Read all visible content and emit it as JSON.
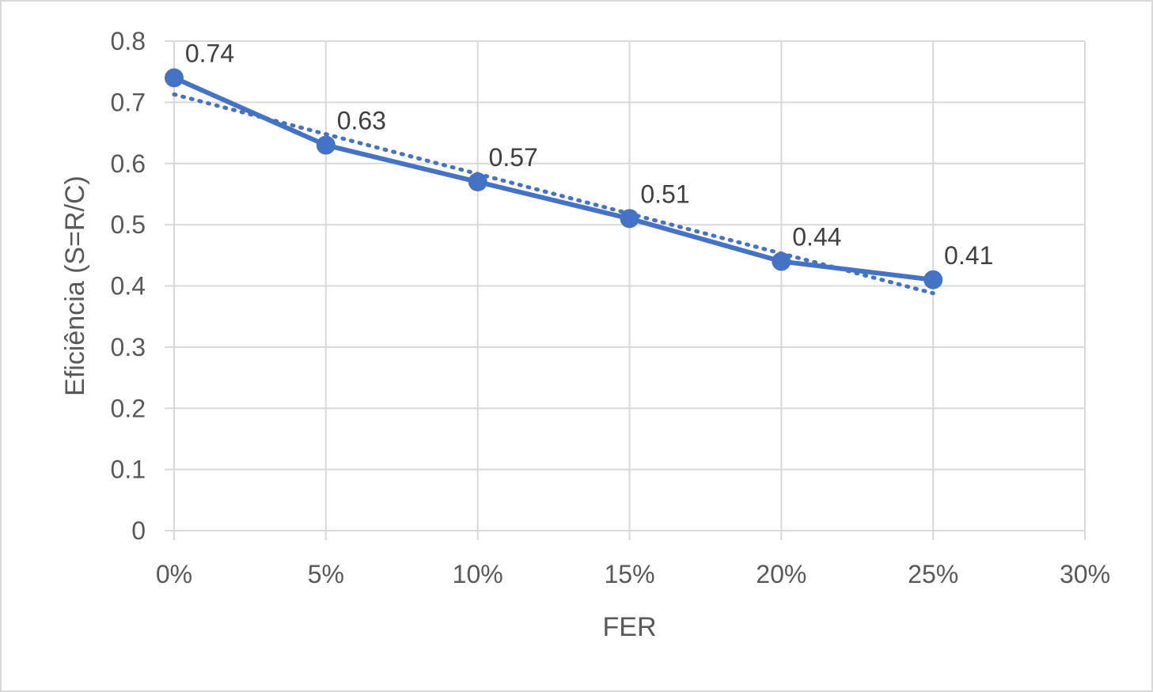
{
  "chart_data": {
    "type": "line",
    "xlabel": "FER",
    "ylabel": "Eficiência (S=R/C)",
    "x_ticks": [
      "0%",
      "5%",
      "10%",
      "15%",
      "20%",
      "25%",
      "30%"
    ],
    "y_ticks": [
      "0",
      "0.1",
      "0.2",
      "0.3",
      "0.4",
      "0.5",
      "0.6",
      "0.7",
      "0.8"
    ],
    "xlim": [
      0,
      30
    ],
    "ylim": [
      0,
      0.8
    ],
    "grid": true,
    "legend": "none",
    "series": [
      {
        "x": [
          0,
          5,
          10,
          15,
          20,
          25
        ],
        "values": [
          0.74,
          0.63,
          0.57,
          0.51,
          0.44,
          0.41
        ],
        "data_labels": [
          "0.74",
          "0.63",
          "0.57",
          "0.51",
          "0.44",
          "0.41"
        ],
        "style": "solid-with-markers",
        "color": "#4472c4"
      }
    ],
    "trendline": {
      "type": "linear",
      "style": "dotted",
      "color": "#4472c4",
      "x": [
        0,
        25
      ],
      "values": [
        0.713,
        0.388
      ]
    }
  }
}
